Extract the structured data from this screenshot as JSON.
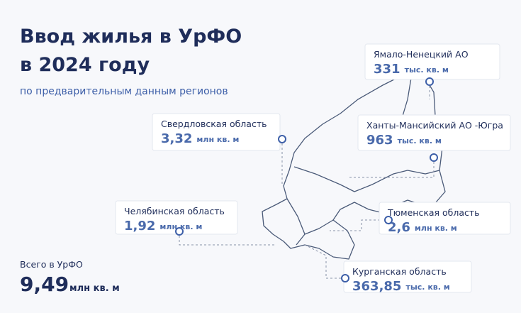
{
  "header": {
    "title_lines": [
      "Ввод жилья в УрФО",
      "в 2024 году"
    ],
    "subtitle": "по предварительным данным регионов"
  },
  "regions": [
    {
      "name": "Ямало-Ненецкий АО",
      "value": "331",
      "unit": "тыс. кв. м"
    },
    {
      "name": "Свердловская  область",
      "value": "3,32",
      "unit": "млн кв. м"
    },
    {
      "name": "Ханты-Мансийский АО -Югра",
      "value": "963",
      "unit": "тыс. кв. м"
    },
    {
      "name": "Челябинская область",
      "value": "1,92",
      "unit": "млн кв. м"
    },
    {
      "name": "Тюменская область",
      "value": "2,6",
      "unit": "млн кв. м"
    },
    {
      "name": "Курганская область",
      "value": "363,85",
      "unit": "тыс. кв. м"
    }
  ],
  "total": {
    "label": "Всего в УрФО",
    "value": "9,49",
    "unit": "млн кв. м"
  }
}
